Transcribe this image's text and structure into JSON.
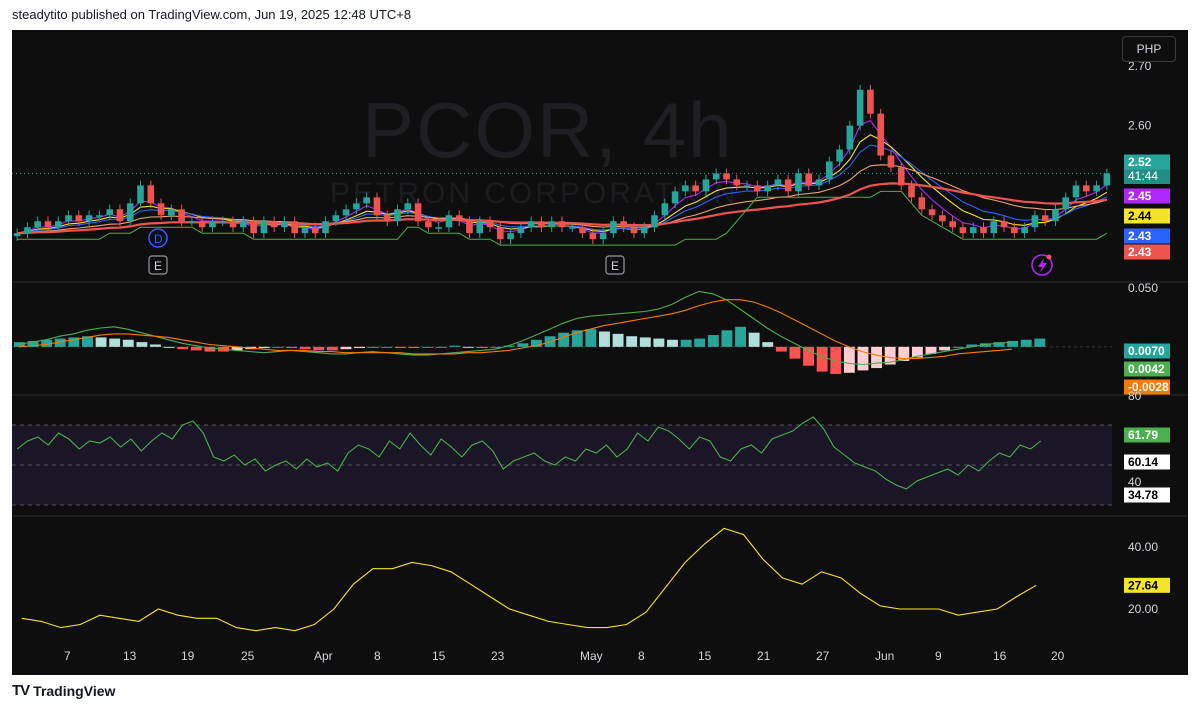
{
  "header": {
    "text": "steadytito published on TradingView.com, Jun 19, 2025 12:48 UTC+8"
  },
  "footer": {
    "logo_text": "TradingView",
    "logo_icon": "tradingview-logo-icon"
  },
  "chart": {
    "currency": "PHP",
    "watermark_symbol": "PCOR, 4h",
    "watermark_desc": "PETRON CORPORATION",
    "event_markers": [
      {
        "label": "D",
        "date": "Mar 15",
        "style": "dividend"
      },
      {
        "label": "E",
        "date": "Mar 15",
        "style": "earnings"
      },
      {
        "label": "E",
        "date": "May 6",
        "style": "earnings"
      }
    ],
    "flash_icon": "lightning-icon"
  },
  "colors": {
    "bg": "#0e0e0e",
    "up": "#26a69a",
    "down": "#ef5350",
    "grid": "#1a1a1a",
    "purple": "#b026ff",
    "yellow": "#f5e52a",
    "blue": "#2962ff",
    "red": "#ef5350",
    "green": "#4caf50",
    "orange": "#f57c00",
    "adx": "#f5e52a"
  },
  "chart_data": [
    {
      "type": "candlestick",
      "title": "PCOR, 4h",
      "x_tick_labels": [
        "7",
        "13",
        "19",
        "25",
        "Apr",
        "8",
        "15",
        "23",
        "May",
        "8",
        "15",
        "21",
        "27",
        "Jun",
        "9",
        "16",
        "20"
      ],
      "y_tick_labels": [
        "2.70",
        "2.60"
      ],
      "ylim": [
        2.34,
        2.76
      ],
      "price_labels": [
        {
          "value": "2.52",
          "sub": "41:44",
          "color": "#26a69a"
        },
        {
          "value": "2.45",
          "color": "#b026ff"
        },
        {
          "value": "2.44",
          "color": "#f5e52a"
        },
        {
          "value": "2.43",
          "color": "#2962ff"
        },
        {
          "value": "2.43",
          "color": "#ef5350"
        },
        {
          "value": "2.43",
          "color": "#ef5350"
        }
      ],
      "last_price": 2.52,
      "close_series": [
        2.42,
        2.43,
        2.44,
        2.43,
        2.44,
        2.45,
        2.44,
        2.45,
        2.45,
        2.46,
        2.44,
        2.47,
        2.5,
        2.47,
        2.45,
        2.46,
        2.44,
        2.44,
        2.43,
        2.44,
        2.44,
        2.43,
        2.44,
        2.42,
        2.44,
        2.43,
        2.44,
        2.42,
        2.43,
        2.42,
        2.44,
        2.45,
        2.46,
        2.47,
        2.48,
        2.45,
        2.44,
        2.46,
        2.47,
        2.44,
        2.43,
        2.43,
        2.45,
        2.44,
        2.42,
        2.44,
        2.43,
        2.41,
        2.42,
        2.43,
        2.44,
        2.43,
        2.44,
        2.43,
        2.43,
        2.42,
        2.41,
        2.42,
        2.44,
        2.43,
        2.42,
        2.43,
        2.45,
        2.47,
        2.49,
        2.5,
        2.49,
        2.51,
        2.52,
        2.51,
        2.5,
        2.5,
        2.49,
        2.5,
        2.51,
        2.49,
        2.52,
        2.5,
        2.51,
        2.54,
        2.56,
        2.6,
        2.66,
        2.62,
        2.55,
        2.53,
        2.5,
        2.48,
        2.46,
        2.45,
        2.44,
        2.43,
        2.42,
        2.43,
        2.42,
        2.44,
        2.43,
        2.42,
        2.43,
        2.45,
        2.44,
        2.46,
        2.48,
        2.5,
        2.49,
        2.5,
        2.52
      ],
      "series": [
        {
          "name": "EMA purple",
          "color": "#b026ff",
          "final": 2.45
        },
        {
          "name": "EMA yellow",
          "color": "#f5e52a",
          "final": 2.44
        },
        {
          "name": "EMA blue",
          "color": "#2962ff",
          "final": 2.43
        },
        {
          "name": "MA red",
          "color": "#ef5350",
          "final": 2.43
        }
      ]
    },
    {
      "type": "bar",
      "title": "MACD",
      "y_tick_labels": [
        "0.050"
      ],
      "ylim": [
        -0.04,
        0.055
      ],
      "value_labels": [
        {
          "value": "0.0070",
          "color": "#26a69a"
        },
        {
          "value": "0.0042",
          "color": "#4caf50"
        },
        {
          "value": "-0.0028",
          "color": "#f57c00"
        }
      ],
      "histogram": [
        0.004,
        0.005,
        0.006,
        0.007,
        0.008,
        0.009,
        0.008,
        0.007,
        0.006,
        0.004,
        0.002,
        0.0,
        -0.002,
        -0.003,
        -0.004,
        -0.004,
        -0.003,
        -0.002,
        -0.001,
        0.0,
        -0.001,
        -0.002,
        -0.003,
        -0.003,
        -0.002,
        -0.001,
        0.0,
        0.0,
        -0.001,
        -0.001,
        0.0,
        0.0,
        0.001,
        0.0,
        -0.001,
        0.0,
        0.001,
        0.003,
        0.006,
        0.009,
        0.012,
        0.014,
        0.015,
        0.013,
        0.011,
        0.009,
        0.008,
        0.007,
        0.006,
        0.006,
        0.007,
        0.01,
        0.014,
        0.017,
        0.012,
        0.004,
        -0.004,
        -0.01,
        -0.016,
        -0.021,
        -0.023,
        -0.022,
        -0.02,
        -0.018,
        -0.015,
        -0.012,
        -0.009,
        -0.006,
        -0.003,
        0.0,
        0.002,
        0.003,
        0.004,
        0.005,
        0.006,
        0.007
      ],
      "macd_line": [
        0.002,
        0.004,
        0.006,
        0.009,
        0.011,
        0.014,
        0.016,
        0.017,
        0.015,
        0.012,
        0.009,
        0.006,
        0.003,
        0.001,
        -0.001,
        -0.002,
        -0.003,
        -0.004,
        -0.005,
        -0.004,
        -0.003,
        -0.004,
        -0.005,
        -0.006,
        -0.006,
        -0.005,
        -0.004,
        -0.005,
        -0.006,
        -0.007,
        -0.007,
        -0.006,
        -0.005,
        -0.004,
        -0.003,
        -0.002,
        0.001,
        0.005,
        0.01,
        0.015,
        0.02,
        0.024,
        0.026,
        0.027,
        0.028,
        0.029,
        0.03,
        0.032,
        0.036,
        0.042,
        0.047,
        0.045,
        0.04,
        0.032,
        0.024,
        0.016,
        0.009,
        0.003,
        -0.003,
        -0.008,
        -0.012,
        -0.014,
        -0.015,
        -0.014,
        -0.013,
        -0.011,
        -0.008,
        -0.006,
        -0.004,
        -0.002,
        0.0,
        0.002,
        0.003,
        0.004
      ],
      "signal_line": [
        0.0,
        0.001,
        0.002,
        0.004,
        0.006,
        0.008,
        0.01,
        0.011,
        0.011,
        0.01,
        0.009,
        0.008,
        0.006,
        0.004,
        0.002,
        0.001,
        0.0,
        -0.001,
        -0.002,
        -0.003,
        -0.003,
        -0.003,
        -0.004,
        -0.004,
        -0.005,
        -0.005,
        -0.005,
        -0.005,
        -0.005,
        -0.006,
        -0.006,
        -0.006,
        -0.006,
        -0.005,
        -0.005,
        -0.004,
        -0.003,
        -0.001,
        0.001,
        0.004,
        0.008,
        0.012,
        0.015,
        0.018,
        0.02,
        0.022,
        0.024,
        0.026,
        0.028,
        0.031,
        0.035,
        0.038,
        0.04,
        0.04,
        0.038,
        0.034,
        0.029,
        0.023,
        0.017,
        0.011,
        0.005,
        0.0,
        -0.004,
        -0.007,
        -0.009,
        -0.01,
        -0.01,
        -0.009,
        -0.008,
        -0.006,
        -0.005,
        -0.004,
        -0.003,
        -0.002
      ]
    },
    {
      "type": "line",
      "title": "RSI",
      "y_tick_labels": [
        "80",
        "40"
      ],
      "ylim": [
        25,
        85
      ],
      "band": [
        70,
        30
      ],
      "value_labels": [
        {
          "value": "61.79",
          "color": "#4caf50"
        },
        {
          "value": "60.14",
          "color": "#ffffff"
        },
        {
          "value": "34.78",
          "color": "#ffffff"
        }
      ],
      "values": [
        58,
        62,
        64,
        60,
        66,
        63,
        58,
        62,
        61,
        64,
        59,
        63,
        57,
        62,
        66,
        63,
        70,
        72,
        66,
        54,
        52,
        55,
        50,
        53,
        47,
        50,
        52,
        48,
        53,
        49,
        51,
        47,
        56,
        60,
        58,
        54,
        62,
        58,
        66,
        60,
        55,
        63,
        59,
        54,
        60,
        62,
        57,
        48,
        52,
        54,
        56,
        52,
        50,
        54,
        52,
        58,
        56,
        60,
        54,
        58,
        66,
        62,
        69,
        67,
        63,
        58,
        64,
        62,
        54,
        52,
        58,
        60,
        56,
        63,
        65,
        67,
        71,
        74,
        68,
        59,
        55,
        51,
        49,
        47,
        43,
        40,
        38,
        42,
        44,
        46,
        48,
        45,
        50,
        47,
        52,
        56,
        54,
        60,
        58,
        62
      ]
    },
    {
      "type": "line",
      "title": "ADX",
      "y_tick_labels": [
        "40.00",
        "20.00"
      ],
      "ylim": [
        10,
        50
      ],
      "value_labels": [
        {
          "value": "27.64",
          "color": "#f5e52a"
        }
      ],
      "values": [
        17,
        16,
        14,
        15,
        18,
        17,
        16,
        20,
        18,
        17,
        17,
        14,
        13,
        14,
        13,
        15,
        20,
        28,
        33,
        33,
        35,
        34,
        32,
        28,
        24,
        20,
        18,
        16,
        15,
        14,
        14,
        15,
        19,
        27,
        35,
        41,
        46,
        44,
        36,
        30,
        28,
        32,
        30,
        25,
        21,
        20,
        20,
        20,
        18,
        19,
        20,
        24,
        27.64
      ]
    }
  ]
}
